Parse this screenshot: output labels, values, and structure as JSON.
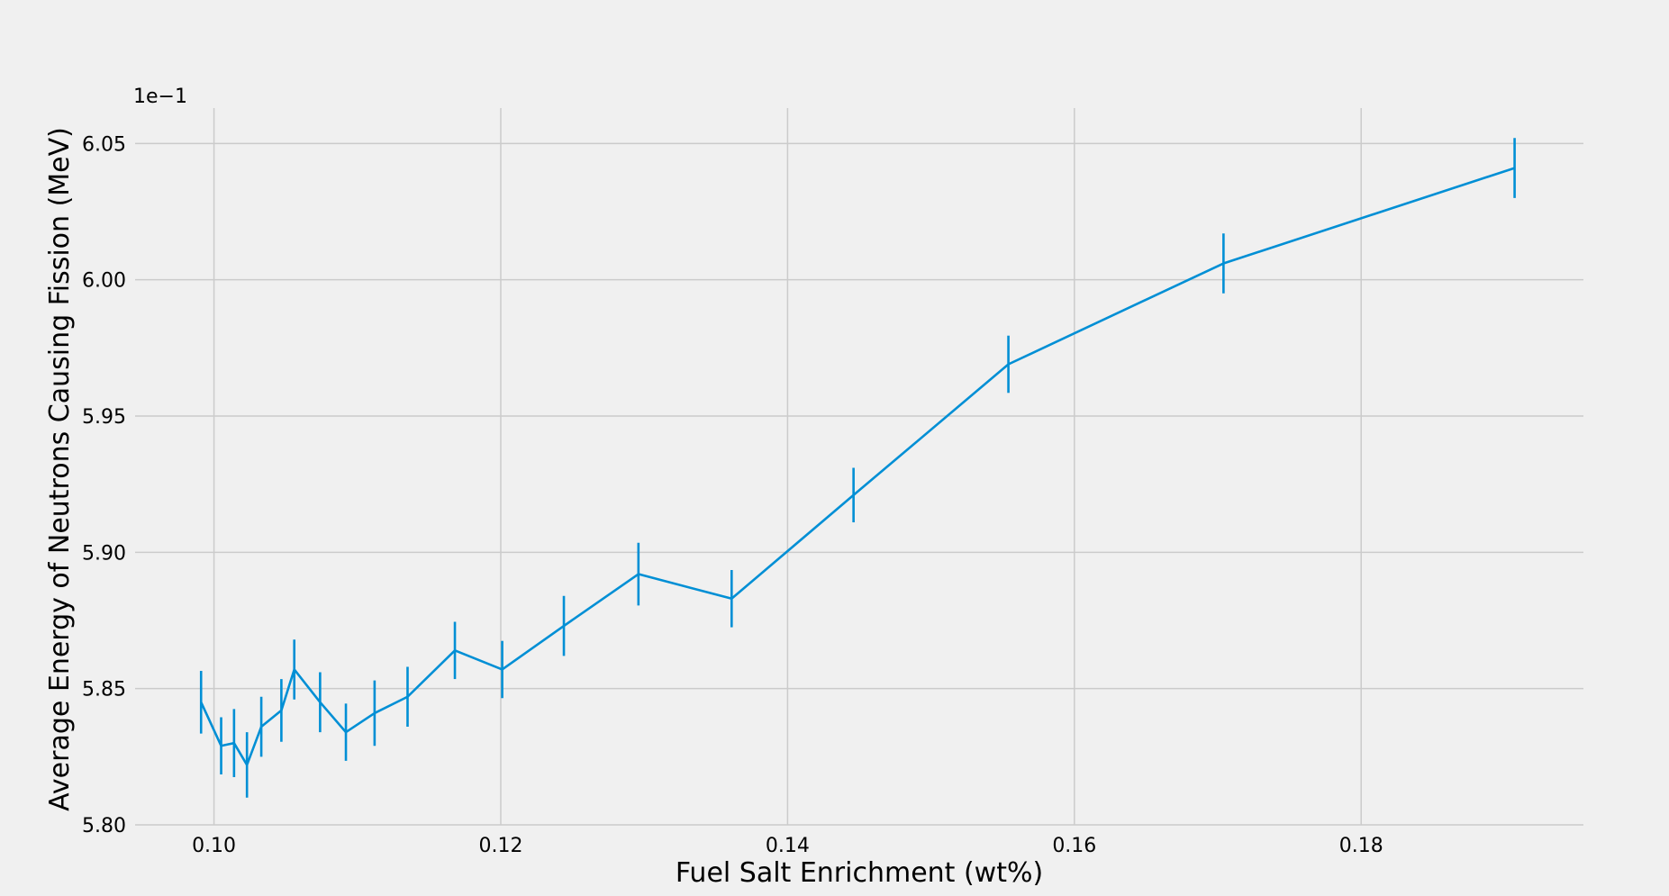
{
  "chart_data": {
    "type": "line",
    "title": "",
    "xlabel": "Fuel Salt Enrichment (wt%)",
    "ylabel": "Average Energy of Neutrons Causing Fission (MeV)",
    "y_offset_label": "1e−1",
    "xlim": [
      0.0945,
      0.1955
    ],
    "ylim": [
      5.8,
      6.063
    ],
    "x_ticks": [
      0.1,
      0.12,
      0.14,
      0.16,
      0.18
    ],
    "x_tick_labels": [
      "0.10",
      "0.12",
      "0.14",
      "0.16",
      "0.18"
    ],
    "y_ticks": [
      5.8,
      5.85,
      5.9,
      5.95,
      6.0,
      6.05
    ],
    "y_tick_labels": [
      "5.80",
      "5.85",
      "5.90",
      "5.95",
      "6.00",
      "6.05"
    ],
    "grid": true,
    "series": [
      {
        "color": "#008fd5",
        "points": [
          {
            "x": 0.0991,
            "y": 5.845,
            "err": 0.0115
          },
          {
            "x": 0.1005,
            "y": 5.829,
            "err": 0.0105
          },
          {
            "x": 0.1014,
            "y": 5.83,
            "err": 0.0125
          },
          {
            "x": 0.1023,
            "y": 5.822,
            "err": 0.012
          },
          {
            "x": 0.1033,
            "y": 5.836,
            "err": 0.011
          },
          {
            "x": 0.1047,
            "y": 5.842,
            "err": 0.0115
          },
          {
            "x": 0.1056,
            "y": 5.857,
            "err": 0.011
          },
          {
            "x": 0.1074,
            "y": 5.845,
            "err": 0.011
          },
          {
            "x": 0.1092,
            "y": 5.834,
            "err": 0.0105
          },
          {
            "x": 0.1112,
            "y": 5.841,
            "err": 0.012
          },
          {
            "x": 0.1135,
            "y": 5.847,
            "err": 0.011
          },
          {
            "x": 0.1168,
            "y": 5.864,
            "err": 0.0105
          },
          {
            "x": 0.1201,
            "y": 5.857,
            "err": 0.0105
          },
          {
            "x": 0.1244,
            "y": 5.873,
            "err": 0.011
          },
          {
            "x": 0.1296,
            "y": 5.892,
            "err": 0.0115
          },
          {
            "x": 0.1361,
            "y": 5.883,
            "err": 0.0105
          },
          {
            "x": 0.1446,
            "y": 5.921,
            "err": 0.01
          },
          {
            "x": 0.1554,
            "y": 5.969,
            "err": 0.0105
          },
          {
            "x": 0.1704,
            "y": 6.006,
            "err": 0.011
          },
          {
            "x": 0.1907,
            "y": 6.041,
            "err": 0.011
          }
        ]
      }
    ]
  }
}
